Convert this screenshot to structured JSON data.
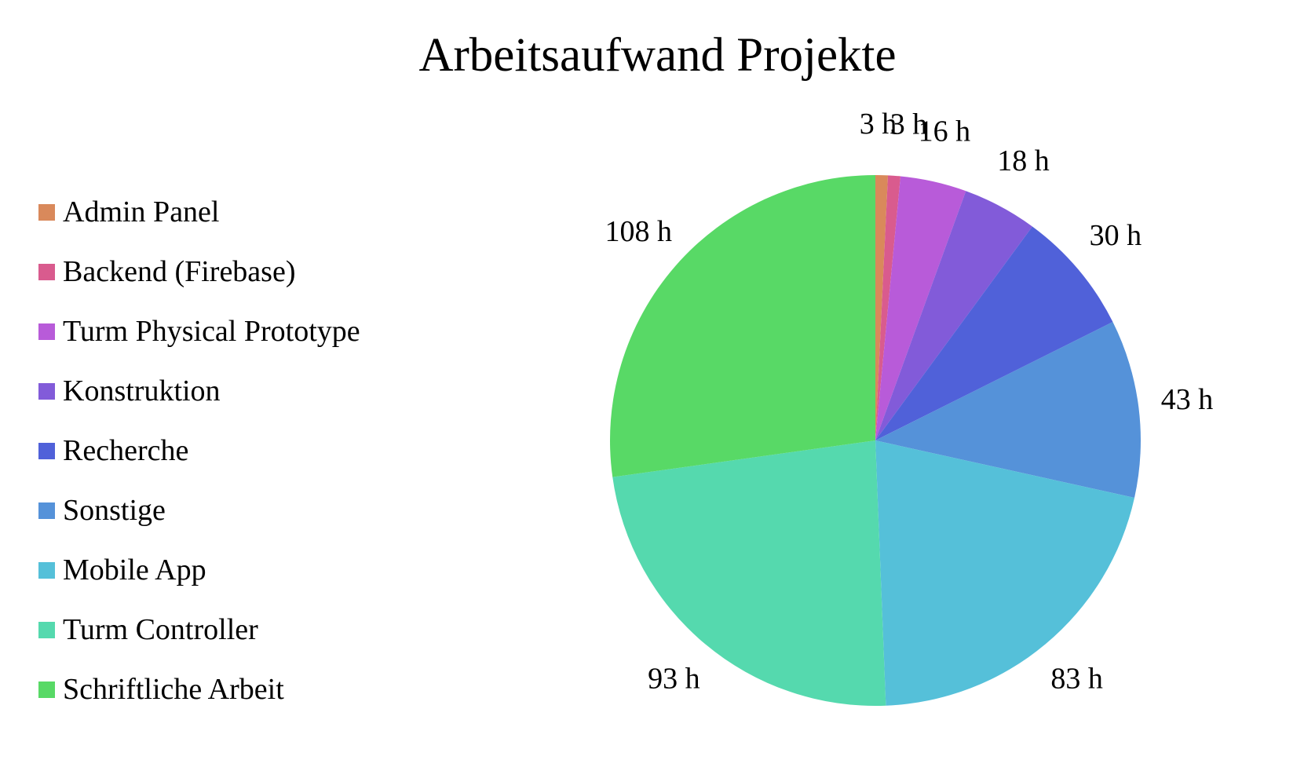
{
  "chart_data": {
    "type": "pie",
    "title": "Arbeitsaufwand Projekte",
    "legend_position": "left",
    "unit_suffix": " h",
    "slices": [
      {
        "label": "Admin Panel",
        "value": 3,
        "color": "#D9895B",
        "data_label": "3 h"
      },
      {
        "label": "Backend (Firebase)",
        "value": 3,
        "color": "#D95B8E",
        "data_label": "3 h"
      },
      {
        "label": "Turm Physical Prototype",
        "value": 16,
        "color": "#B85BD9",
        "data_label": "16 h"
      },
      {
        "label": "Konstruktion",
        "value": 18,
        "color": "#825BD9",
        "data_label": "18 h"
      },
      {
        "label": "Recherche",
        "value": 30,
        "color": "#5061D9",
        "data_label": "30 h"
      },
      {
        "label": "Sonstige",
        "value": 43,
        "color": "#5592D9",
        "data_label": "43 h"
      },
      {
        "label": "Mobile App",
        "value": 83,
        "color": "#55C0D9",
        "data_label": "83 h"
      },
      {
        "label": "Turm Controller",
        "value": 93,
        "color": "#55D9AE",
        "data_label": "93 h"
      },
      {
        "label": "Schriftliche Arbeit",
        "value": 108,
        "color": "#58D966",
        "data_label": "108 h"
      }
    ]
  }
}
